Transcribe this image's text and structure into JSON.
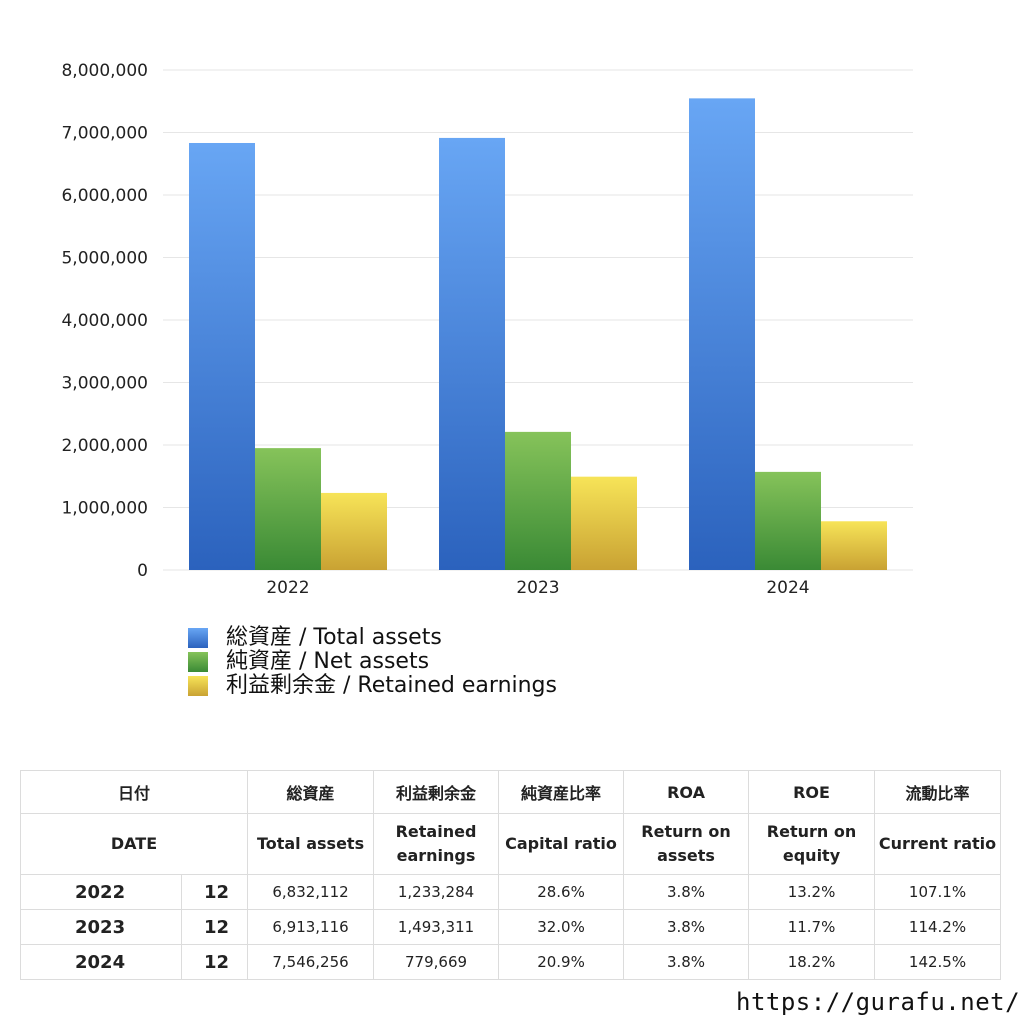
{
  "chart_data": {
    "type": "bar",
    "categories": [
      "2022",
      "2023",
      "2024"
    ],
    "series": [
      {
        "name": "総資産 / Total assets",
        "values": [
          6832112,
          6913116,
          7546256
        ],
        "color": "#3f7fdc"
      },
      {
        "name": "純資産 / Net assets",
        "values": [
          1950000,
          2210000,
          1570000
        ],
        "color": "#5aa642"
      },
      {
        "name": "利益剰余金 / Retained earnings",
        "values": [
          1233284,
          1493311,
          779669
        ],
        "color": "#e0c03c"
      }
    ],
    "ylim": [
      0,
      8000000
    ],
    "yticks": [
      "0",
      "1,000,000",
      "2,000,000",
      "3,000,000",
      "4,000,000",
      "5,000,000",
      "6,000,000",
      "7,000,000",
      "8,000,000"
    ],
    "grid": true,
    "legend_position": "bottom-left"
  },
  "table": {
    "header_jp": {
      "date": "日付",
      "total_assets": "総資産",
      "retained": "利益剰余金",
      "capital_ratio": "純資産比率",
      "roa": "ROA",
      "roe": "ROE",
      "current_ratio": "流動比率"
    },
    "header_en": {
      "date": "DATE",
      "total_assets": "Total assets",
      "retained_1": "Retained",
      "retained_2": "earnings",
      "capital_ratio": "Capital ratio",
      "roa_1": "Return on",
      "roa_2": "assets",
      "roe_1": "Return on",
      "roe_2": "equity",
      "current_ratio": "Current ratio"
    },
    "rows": [
      {
        "year": "2022",
        "month": "12",
        "total_assets": "6,832,112",
        "retained": "1,233,284",
        "capital_ratio": "28.6%",
        "roa": "3.8%",
        "roe": "13.2%",
        "current_ratio": "107.1%"
      },
      {
        "year": "2023",
        "month": "12",
        "total_assets": "6,913,116",
        "retained": "1,493,311",
        "capital_ratio": "32.0%",
        "roa": "3.8%",
        "roe": "11.7%",
        "current_ratio": "114.2%"
      },
      {
        "year": "2024",
        "month": "12",
        "total_assets": "7,546,256",
        "retained": "779,669",
        "capital_ratio": "20.9%",
        "roa": "3.8%",
        "roe": "18.2%",
        "current_ratio": "142.5%"
      }
    ]
  },
  "footer_url": "https://gurafu.net/"
}
